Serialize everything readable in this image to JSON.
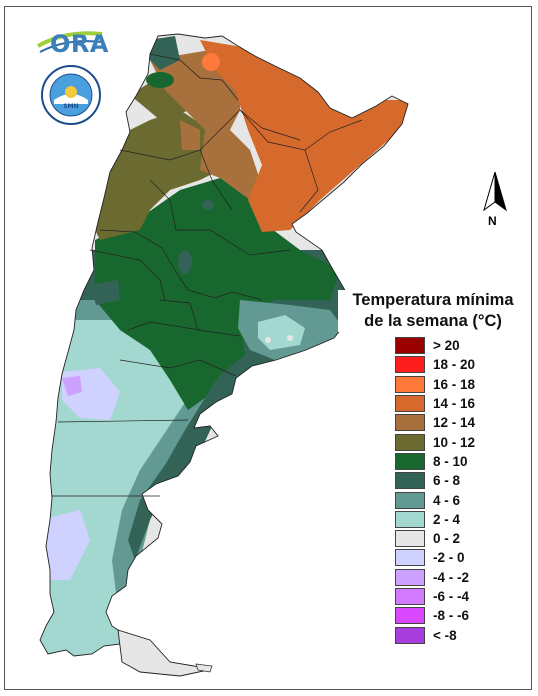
{
  "logo": {
    "text": "ORA",
    "seal_text": "SERVICIO METEOROLOGICO NACIONAL · ARGENTINA",
    "seal_inner": "SMN"
  },
  "north_arrow": {
    "label": "N"
  },
  "legend": {
    "title_line1": "Temperatura mínima",
    "title_line2": "de la semana (°C)",
    "items": [
      {
        "label": "> 20",
        "color": "#9b0000"
      },
      {
        "label": "18 - 20",
        "color": "#ff1e1e"
      },
      {
        "label": "16 - 18",
        "color": "#ff7a3a"
      },
      {
        "label": "14 - 16",
        "color": "#d66a2c"
      },
      {
        "label": "12 - 14",
        "color": "#a8703c"
      },
      {
        "label": "10 - 12",
        "color": "#6b6a30"
      },
      {
        "label": "8 - 10",
        "color": "#17672e"
      },
      {
        "label": "6 - 8",
        "color": "#326356"
      },
      {
        "label": "4 - 6",
        "color": "#629a93"
      },
      {
        "label": "2 - 4",
        "color": "#a3d8d0"
      },
      {
        "label": "0 - 2",
        "color": "#e6e6e6"
      },
      {
        "label": "-2 - 0",
        "color": "#cfd2ff"
      },
      {
        "label": "-4 - -2",
        "color": "#cda1ff"
      },
      {
        "label": "-6 - -4",
        "color": "#d27bff"
      },
      {
        "label": "-8 - -6",
        "color": "#d947ff"
      },
      {
        "label": "< -8",
        "color": "#a63ddc"
      }
    ]
  }
}
